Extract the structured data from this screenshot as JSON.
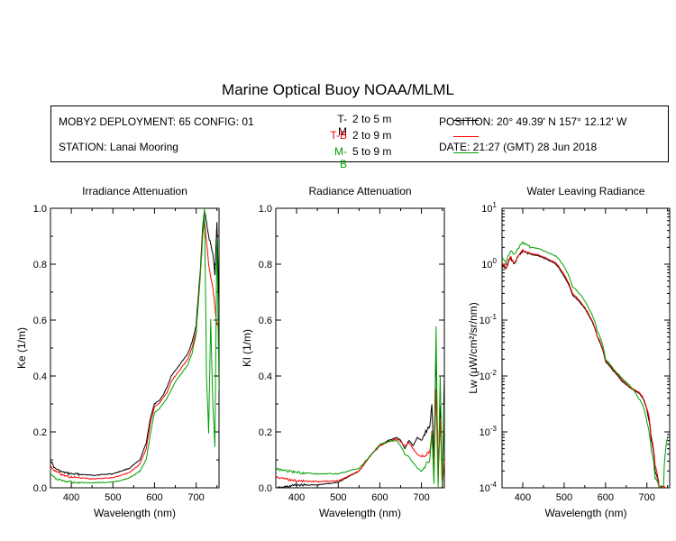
{
  "title": "Marine Optical Buoy NOAA/MLML",
  "info": {
    "deployment": "MOBY2 DEPLOYMENT: 65 CONFIG: 01",
    "station": "STATION: Lanai Mooring",
    "position": "POSITION: 20° 49.39' N   157° 12.12' W",
    "date": "DATE: 21:27 (GMT) 28 Jun 2018"
  },
  "legend": [
    {
      "label": "T-M",
      "range": "2 to 5  m",
      "color": "#000000"
    },
    {
      "label": "T-B",
      "range": "2 to 9  m",
      "color": "#ff0000"
    },
    {
      "label": "M-B",
      "range": "5 to 9  m",
      "color": "#00a000"
    }
  ],
  "chart_data": [
    {
      "type": "line",
      "title": "Irradiance Attenuation",
      "xlabel": "Wavelength (nm)",
      "ylabel": "Ke  (1/m)",
      "xlim": [
        350,
        755
      ],
      "ylim": [
        0,
        1
      ],
      "xticks": [
        "400",
        "500",
        "600",
        "700"
      ],
      "yticks": [
        "0.0",
        "0.2",
        "0.4",
        "0.6",
        "0.8",
        "1.0"
      ],
      "series": [
        {
          "name": "T-M",
          "color": "#000000",
          "x": [
            350,
            360,
            380,
            400,
            450,
            500,
            540,
            565,
            580,
            590,
            600,
            610,
            620,
            630,
            640,
            650,
            660,
            670,
            680,
            690,
            700,
            710,
            715,
            720,
            725,
            730,
            735,
            740,
            745,
            750,
            755
          ],
          "y": [
            0.1,
            0.07,
            0.055,
            0.05,
            0.045,
            0.05,
            0.07,
            0.1,
            0.16,
            0.25,
            0.3,
            0.31,
            0.33,
            0.36,
            0.4,
            0.42,
            0.44,
            0.46,
            0.48,
            0.52,
            0.58,
            0.78,
            0.92,
            0.99,
            0.95,
            0.9,
            0.87,
            0.84,
            0.76,
            0.95,
            0.65
          ]
        },
        {
          "name": "T-B",
          "color": "#ff0000",
          "x": [
            350,
            360,
            380,
            400,
            450,
            500,
            540,
            565,
            580,
            590,
            600,
            610,
            620,
            630,
            640,
            650,
            660,
            670,
            680,
            690,
            700,
            710,
            715,
            720,
            725,
            730,
            735,
            740,
            745,
            750,
            755
          ],
          "y": [
            0.08,
            0.06,
            0.045,
            0.038,
            0.032,
            0.036,
            0.055,
            0.085,
            0.14,
            0.23,
            0.29,
            0.3,
            0.32,
            0.34,
            0.38,
            0.4,
            0.42,
            0.44,
            0.46,
            0.5,
            0.56,
            0.76,
            0.9,
            0.96,
            0.88,
            0.8,
            0.75,
            0.72,
            0.65,
            0.58,
            0.6
          ]
        },
        {
          "name": "M-B",
          "color": "#00a000",
          "x": [
            350,
            360,
            380,
            400,
            450,
            500,
            540,
            565,
            580,
            590,
            600,
            610,
            620,
            630,
            640,
            650,
            660,
            670,
            680,
            690,
            700,
            710,
            715,
            720,
            725,
            730,
            735,
            740,
            745,
            750,
            755
          ],
          "y": [
            0.05,
            0.035,
            0.025,
            0.02,
            0.018,
            0.02,
            0.035,
            0.06,
            0.1,
            0.19,
            0.27,
            0.28,
            0.3,
            0.32,
            0.35,
            0.38,
            0.4,
            0.42,
            0.44,
            0.48,
            0.55,
            0.76,
            0.88,
            1.0,
            0.4,
            0.2,
            0.6,
            0.3,
            0.15,
            0.9,
            0.35
          ]
        }
      ]
    },
    {
      "type": "line",
      "title": "Radiance Attenuation",
      "xlabel": "Wavelength (nm)",
      "ylabel": "Kl  (1/m)",
      "xlim": [
        350,
        755
      ],
      "ylim": [
        0,
        1
      ],
      "xticks": [
        "400",
        "500",
        "600",
        "700"
      ],
      "yticks": [
        "0.0",
        "0.2",
        "0.4",
        "0.6",
        "0.8",
        "1.0"
      ],
      "series": [
        {
          "name": "T-M",
          "color": "#000000",
          "x": [
            350,
            360,
            380,
            400,
            450,
            500,
            550,
            580,
            600,
            620,
            640,
            650,
            660,
            670,
            680,
            690,
            700,
            710,
            720,
            725,
            730,
            735,
            740,
            745,
            750,
            755
          ],
          "y": [
            0.0,
            0.0,
            0.005,
            0.01,
            0.01,
            0.02,
            0.06,
            0.12,
            0.15,
            0.17,
            0.18,
            0.17,
            0.14,
            0.17,
            0.15,
            0.18,
            0.17,
            0.2,
            0.22,
            0.3,
            0.1,
            0.5,
            0.05,
            0.3,
            0.0,
            0.4
          ]
        },
        {
          "name": "T-B",
          "color": "#ff0000",
          "x": [
            350,
            360,
            380,
            400,
            450,
            500,
            550,
            580,
            600,
            620,
            640,
            650,
            660,
            670,
            680,
            690,
            700,
            710,
            720,
            725,
            730,
            735,
            740,
            745,
            750,
            755
          ],
          "y": [
            0.04,
            0.035,
            0.03,
            0.025,
            0.022,
            0.025,
            0.06,
            0.12,
            0.15,
            0.165,
            0.175,
            0.165,
            0.15,
            0.16,
            0.14,
            0.12,
            0.11,
            0.12,
            0.13,
            0.2,
            0.05,
            0.35,
            0.02,
            0.25,
            0.0,
            0.1
          ]
        },
        {
          "name": "M-B",
          "color": "#00a000",
          "x": [
            350,
            360,
            380,
            400,
            450,
            500,
            550,
            580,
            600,
            620,
            640,
            650,
            660,
            670,
            680,
            690,
            700,
            710,
            720,
            725,
            730,
            735,
            740,
            745,
            750,
            755
          ],
          "y": [
            0.07,
            0.065,
            0.06,
            0.055,
            0.05,
            0.05,
            0.07,
            0.12,
            0.155,
            0.165,
            0.17,
            0.15,
            0.12,
            0.11,
            0.09,
            0.07,
            0.06,
            0.08,
            0.1,
            0.2,
            0.02,
            0.58,
            0.0,
            0.4,
            0.0,
            0.3
          ]
        }
      ]
    },
    {
      "type": "line",
      "title": "Water Leaving Radiance",
      "xlabel": "Wavelength (nm)",
      "ylabel": "Lw  (μW/cm²/sr/nm)",
      "yscale": "log",
      "xlim": [
        350,
        755
      ],
      "ylim": [
        0.0001,
        10
      ],
      "xticks": [
        "400",
        "500",
        "600",
        "700"
      ],
      "yticks": [
        {
          "value": 10,
          "base": "10",
          "exp": "1"
        },
        {
          "value": 1,
          "base": "10",
          "exp": "0"
        },
        {
          "value": 0.1,
          "base": "10",
          "exp": "-1"
        },
        {
          "value": 0.01,
          "base": "10",
          "exp": "-2"
        },
        {
          "value": 0.001,
          "base": "10",
          "exp": "-3"
        },
        {
          "value": 0.0001,
          "base": "10",
          "exp": "-4"
        }
      ],
      "series": [
        {
          "name": "T-M",
          "color": "#000000",
          "x": [
            350,
            360,
            370,
            380,
            390,
            400,
            410,
            420,
            440,
            460,
            480,
            500,
            520,
            540,
            560,
            580,
            600,
            620,
            640,
            660,
            680,
            690,
            700,
            710,
            720,
            730,
            740,
            750
          ],
          "y": [
            1.0,
            0.8,
            1.3,
            1.0,
            1.4,
            1.7,
            1.6,
            1.5,
            1.4,
            1.2,
            1.0,
            0.6,
            0.28,
            0.2,
            0.12,
            0.05,
            0.018,
            0.012,
            0.008,
            0.006,
            0.005,
            0.004,
            0.0025,
            0.0008,
            0.0002,
            0.0001,
            0.0001,
            0.0001
          ]
        },
        {
          "name": "T-B",
          "color": "#ff0000",
          "x": [
            350,
            360,
            370,
            380,
            390,
            400,
            410,
            420,
            440,
            460,
            480,
            500,
            520,
            540,
            560,
            580,
            600,
            620,
            640,
            660,
            680,
            690,
            700,
            710,
            720,
            730,
            740,
            750
          ],
          "y": [
            1.05,
            0.85,
            1.35,
            1.05,
            1.45,
            1.75,
            1.65,
            1.55,
            1.45,
            1.25,
            1.05,
            0.65,
            0.3,
            0.21,
            0.125,
            0.052,
            0.019,
            0.0125,
            0.0085,
            0.0062,
            0.0052,
            0.0042,
            0.0026,
            0.0009,
            0.00025,
            0.0001,
            0.0001,
            0.0001
          ]
        },
        {
          "name": "M-B",
          "color": "#00a000",
          "x": [
            350,
            360,
            370,
            380,
            390,
            400,
            410,
            420,
            440,
            460,
            480,
            500,
            520,
            540,
            560,
            580,
            600,
            620,
            640,
            660,
            680,
            690,
            700,
            710,
            720,
            730,
            740,
            750
          ],
          "y": [
            1.3,
            1.1,
            1.7,
            1.5,
            2.0,
            2.4,
            2.2,
            2.0,
            1.9,
            1.6,
            1.4,
            0.9,
            0.4,
            0.28,
            0.16,
            0.065,
            0.02,
            0.013,
            0.009,
            0.0065,
            0.004,
            0.003,
            0.0015,
            0.0005,
            0.00015,
            0.0001,
            0.0001,
            0.0008
          ]
        }
      ]
    }
  ]
}
